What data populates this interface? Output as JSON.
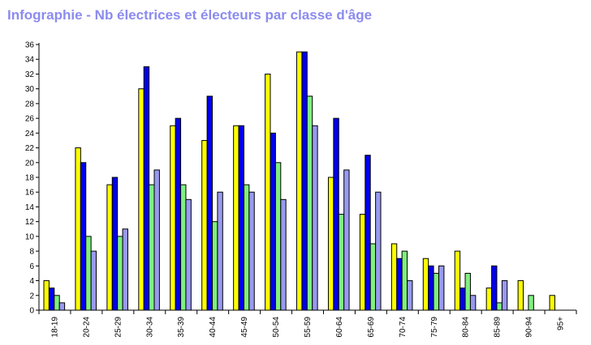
{
  "chart_data": {
    "type": "bar",
    "title": "Infographie - Nb électrices et électeurs par classe d'âge",
    "xlabel": "",
    "ylabel": "",
    "ylim": [
      0,
      36
    ],
    "ytick_step": 2,
    "grid": false,
    "legend": "none",
    "categories": [
      "18-19",
      "20-24",
      "25-29",
      "30-34",
      "35-39",
      "40-44",
      "45-49",
      "50-54",
      "55-59",
      "60-64",
      "65-69",
      "70-74",
      "75-79",
      "80-84",
      "85-89",
      "90-94",
      "95+"
    ],
    "series": [
      {
        "color": "#ffff00",
        "values": [
          4,
          22,
          17,
          30,
          25,
          23,
          25,
          32,
          35,
          18,
          13,
          9,
          7,
          8,
          3,
          4,
          2
        ]
      },
      {
        "color": "#0000ee",
        "values": [
          3,
          20,
          18,
          33,
          26,
          29,
          25,
          24,
          35,
          26,
          21,
          7,
          6,
          3,
          6,
          0,
          0
        ]
      },
      {
        "color": "#80f080",
        "values": [
          2,
          10,
          10,
          17,
          17,
          12,
          17,
          20,
          29,
          13,
          9,
          8,
          5,
          5,
          1,
          2,
          0
        ]
      },
      {
        "color": "#9999f0",
        "values": [
          1,
          8,
          11,
          19,
          15,
          16,
          16,
          15,
          25,
          19,
          16,
          4,
          6,
          2,
          4,
          0,
          0
        ]
      }
    ]
  }
}
